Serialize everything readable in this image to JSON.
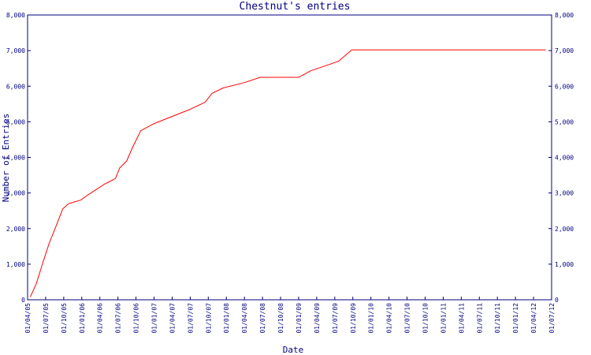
{
  "chart_data": {
    "type": "line",
    "title": "Chestnut's entries",
    "xlabel": "Date",
    "ylabel": "Number of Entries",
    "x_tick_labels": [
      "01/04/05",
      "01/07/05",
      "01/10/05",
      "01/01/06",
      "01/04/06",
      "01/07/06",
      "01/10/06",
      "01/01/07",
      "01/04/07",
      "01/07/07",
      "01/10/07",
      "01/01/08",
      "01/04/08",
      "01/07/08",
      "01/10/08",
      "01/01/09",
      "01/04/09",
      "01/07/09",
      "01/10/09",
      "01/01/10",
      "01/04/10",
      "01/07/10",
      "01/10/10",
      "01/01/11",
      "01/04/11",
      "01/07/11",
      "01/10/11",
      "01/01/12",
      "01/04/12",
      "01/07/12"
    ],
    "y_tick_labels": [
      "0",
      "1,000",
      "2,000",
      "3,000",
      "4,000",
      "5,000",
      "6,000",
      "7,000",
      "8,000"
    ],
    "ylim": [
      0,
      8000
    ],
    "xlim": [
      "2005-04-01",
      "2012-07-01"
    ],
    "grid": false,
    "series": [
      {
        "color": "#ff0000",
        "points": [
          [
            "2005-04-15",
            80
          ],
          [
            "2005-05-15",
            450
          ],
          [
            "2005-06-15",
            1000
          ],
          [
            "2005-07-20",
            1600
          ],
          [
            "2005-08-25",
            2100
          ],
          [
            "2005-09-25",
            2550
          ],
          [
            "2005-10-25",
            2700
          ],
          [
            "2005-11-25",
            2750
          ],
          [
            "2005-12-25",
            2800
          ],
          [
            "2006-02-01",
            2950
          ],
          [
            "2006-03-15",
            3100
          ],
          [
            "2006-04-25",
            3250
          ],
          [
            "2006-06-10",
            3380
          ],
          [
            "2006-06-20",
            3420
          ],
          [
            "2006-07-10",
            3700
          ],
          [
            "2006-08-15",
            3900
          ],
          [
            "2006-09-15",
            4300
          ],
          [
            "2006-10-25",
            4750
          ],
          [
            "2007-01-01",
            4950
          ],
          [
            "2007-04-01",
            5150
          ],
          [
            "2007-07-01",
            5350
          ],
          [
            "2007-09-15",
            5550
          ],
          [
            "2007-10-20",
            5800
          ],
          [
            "2007-12-15",
            5950
          ],
          [
            "2008-04-01",
            6100
          ],
          [
            "2008-06-20",
            6250
          ],
          [
            "2008-07-01",
            6250
          ],
          [
            "2008-12-31",
            6250
          ],
          [
            "2009-03-01",
            6430
          ],
          [
            "2009-07-20",
            6700
          ],
          [
            "2009-09-25",
            7020
          ],
          [
            "2012-06-01",
            7020
          ]
        ]
      }
    ]
  }
}
